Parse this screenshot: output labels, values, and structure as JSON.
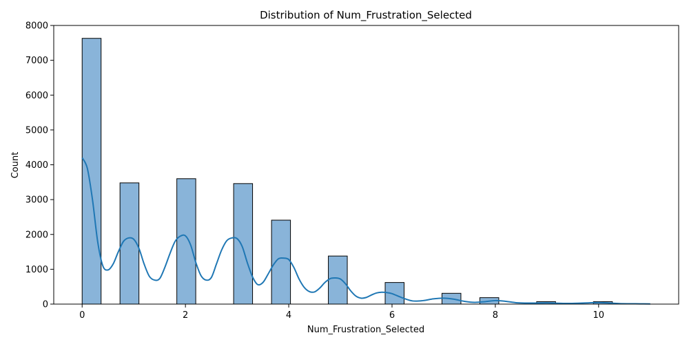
{
  "chart_data": {
    "type": "bar",
    "title": "Distribution of Num_Frustration_Selected",
    "xlabel": "Num_Frustration_Selected",
    "ylabel": "Count",
    "xlim": [
      -0.55,
      11.55
    ],
    "ylim": [
      0,
      8000
    ],
    "xticks": [
      0,
      2,
      4,
      6,
      8,
      10
    ],
    "yticks": [
      0,
      1000,
      2000,
      3000,
      4000,
      5000,
      6000,
      7000,
      8000
    ],
    "grid": false,
    "bin_width": 0.3667,
    "bins": [
      {
        "start": 0.0,
        "count": 7630
      },
      {
        "start": 0.733,
        "count": 3480
      },
      {
        "start": 1.833,
        "count": 3600
      },
      {
        "start": 2.933,
        "count": 3460
      },
      {
        "start": 3.667,
        "count": 2410
      },
      {
        "start": 4.767,
        "count": 1380
      },
      {
        "start": 5.867,
        "count": 620
      },
      {
        "start": 6.967,
        "count": 310
      },
      {
        "start": 7.7,
        "count": 185
      },
      {
        "start": 8.8,
        "count": 70
      },
      {
        "start": 9.9,
        "count": 70
      }
    ],
    "kde": {
      "x": [
        0,
        0.1,
        0.2,
        0.3,
        0.4,
        0.5,
        0.6,
        0.7,
        0.8,
        0.9,
        1.0,
        1.1,
        1.2,
        1.3,
        1.4,
        1.5,
        1.6,
        1.7,
        1.8,
        1.9,
        2.0,
        2.1,
        2.2,
        2.3,
        2.4,
        2.5,
        2.6,
        2.7,
        2.8,
        2.9,
        3.0,
        3.1,
        3.2,
        3.3,
        3.4,
        3.5,
        3.6,
        3.7,
        3.8,
        3.9,
        4.0,
        4.1,
        4.2,
        4.3,
        4.4,
        4.5,
        4.6,
        4.7,
        4.8,
        4.9,
        5.0,
        5.1,
        5.2,
        5.3,
        5.4,
        5.5,
        5.6,
        5.7,
        5.8,
        5.9,
        6.0,
        6.2,
        6.4,
        6.6,
        6.8,
        7.0,
        7.2,
        7.4,
        7.6,
        7.8,
        8.0,
        8.2,
        8.4,
        8.6,
        8.8,
        9.0,
        9.2,
        9.4,
        9.6,
        9.8,
        10.0,
        10.2,
        10.4,
        10.6,
        10.8,
        11.0
      ],
      "y": [
        4200,
        3900,
        3000,
        1800,
        1100,
        980,
        1150,
        1500,
        1800,
        1900,
        1860,
        1600,
        1150,
        800,
        690,
        730,
        1050,
        1450,
        1800,
        1950,
        1960,
        1700,
        1200,
        820,
        690,
        760,
        1150,
        1550,
        1820,
        1900,
        1880,
        1650,
        1180,
        780,
        560,
        620,
        860,
        1120,
        1300,
        1320,
        1280,
        1050,
        720,
        480,
        360,
        350,
        460,
        620,
        730,
        750,
        720,
        580,
        380,
        230,
        170,
        190,
        260,
        320,
        340,
        330,
        300,
        180,
        90,
        100,
        150,
        170,
        140,
        80,
        50,
        70,
        100,
        80,
        40,
        30,
        30,
        35,
        25,
        20,
        25,
        35,
        45,
        30,
        15,
        10,
        8,
        5
      ]
    },
    "colors": {
      "bar_fill": "#89b4d9",
      "bar_edge": "#000000",
      "kde_line": "#1f77b4"
    }
  }
}
